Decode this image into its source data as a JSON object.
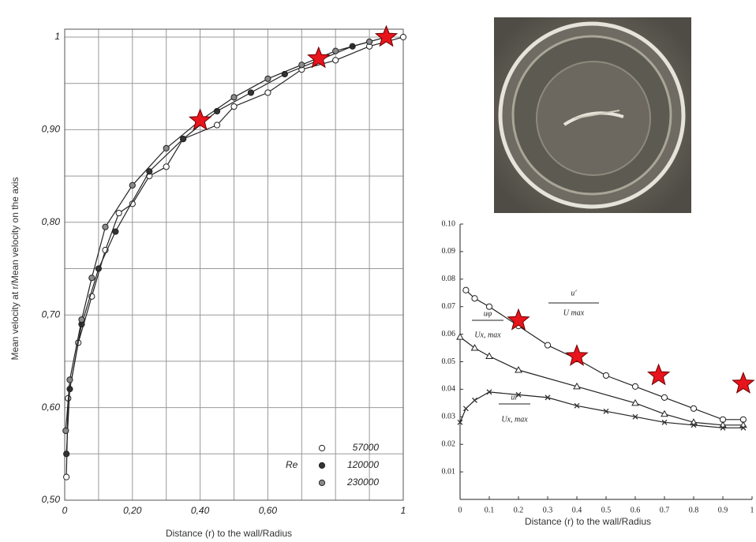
{
  "chart_data": [
    {
      "type": "scatter",
      "x_label": "Distance (r) to the wall/Radius",
      "y_label": "Mean velocity at r/Mean velocity on the axis",
      "legend_title": "Re",
      "legend": "lower right",
      "grid": true,
      "xlim": [
        0,
        1
      ],
      "ylim": [
        0.5,
        1
      ],
      "xticks": [
        0,
        {
          "value": 0.2,
          "label": "0,20"
        },
        {
          "value": 0.4,
          "label": "0,40"
        },
        {
          "value": 0.6,
          "label": "0,60"
        },
        1
      ],
      "yticks": [
        {
          "value": 0.5,
          "label": "0,50"
        },
        {
          "value": 0.6,
          "label": "0,60"
        },
        {
          "value": 0.7,
          "label": "0,70"
        },
        {
          "value": 0.8,
          "label": "0,80"
        },
        {
          "value": 0.9,
          "label": "0,90"
        },
        1
      ],
      "xminor": [
        0.1,
        0.3,
        0.5,
        0.7,
        0.8,
        0.9
      ],
      "yminor": [
        0.55,
        0.65,
        0.75,
        0.85,
        0.95
      ],
      "series": [
        {
          "name": "57000",
          "marker": "circle",
          "color": "#ffffff",
          "x": [
            0.005,
            0.01,
            0.04,
            0.08,
            0.12,
            0.16,
            0.2,
            0.25,
            0.3,
            0.35,
            0.45,
            0.5,
            0.6,
            0.7,
            0.8,
            0.9,
            1.0
          ],
          "values": [
            0.525,
            0.61,
            0.67,
            0.72,
            0.77,
            0.81,
            0.82,
            0.85,
            0.86,
            0.89,
            0.905,
            0.925,
            0.94,
            0.965,
            0.975,
            0.99,
            1.0
          ]
        },
        {
          "name": "120000",
          "marker": "circle",
          "color": "#333333",
          "x": [
            0.005,
            0.015,
            0.05,
            0.1,
            0.15,
            0.25,
            0.35,
            0.45,
            0.55,
            0.65,
            0.75,
            0.85,
            0.95
          ],
          "values": [
            0.55,
            0.62,
            0.69,
            0.75,
            0.79,
            0.855,
            0.89,
            0.92,
            0.94,
            0.96,
            0.975,
            0.99,
            1.0
          ]
        },
        {
          "name": "230000",
          "marker": "circle",
          "color": "#8a8a8a",
          "x": [
            0.003,
            0.015,
            0.05,
            0.08,
            0.12,
            0.2,
            0.3,
            0.4,
            0.5,
            0.6,
            0.7,
            0.8,
            0.9
          ],
          "values": [
            0.575,
            0.63,
            0.695,
            0.74,
            0.795,
            0.84,
            0.88,
            0.91,
            0.935,
            0.955,
            0.97,
            0.985,
            0.995
          ]
        }
      ],
      "highlights": {
        "color": "#e8141c",
        "x": [
          0.4,
          0.75,
          0.95
        ],
        "values": [
          0.91,
          0.977,
          1.0
        ]
      }
    },
    {
      "type": "scatter",
      "x_label": "Distance (r) to the wall/Radius",
      "grid": false,
      "xlim": [
        0,
        1
      ],
      "ylim": [
        0,
        0.1
      ],
      "xticks": [
        0,
        0.1,
        0.2,
        0.3,
        0.4,
        0.5,
        0.6,
        0.7,
        0.8,
        0.9,
        1
      ],
      "yticks": [
        0.01,
        0.02,
        0.03,
        0.04,
        0.05,
        0.06,
        0.07,
        0.08,
        0.09,
        {
          "value": 0.1,
          "label": "0.10"
        }
      ],
      "series": [
        {
          "numerator": "u'",
          "denominator": "U max",
          "marker": "circle",
          "color": "#ffffff",
          "x": [
            0.02,
            0.05,
            0.1,
            0.2,
            0.3,
            0.4,
            0.5,
            0.6,
            0.7,
            0.8,
            0.9,
            0.97
          ],
          "values": [
            0.076,
            0.073,
            0.07,
            0.063,
            0.056,
            0.051,
            0.045,
            0.041,
            0.037,
            0.033,
            0.029,
            0.029
          ]
        },
        {
          "numerator": "uφ",
          "denominator": "Ux, max",
          "marker": "triangle",
          "color": "#ffffff",
          "x": [
            0.0,
            0.05,
            0.1,
            0.2,
            0.4,
            0.6,
            0.7,
            0.8,
            0.9,
            0.97
          ],
          "values": [
            0.059,
            0.055,
            0.052,
            0.047,
            0.041,
            0.035,
            0.031,
            0.028,
            0.027,
            0.027
          ]
        },
        {
          "numerator": "ur",
          "denominator": "Ux, max",
          "marker": "cross",
          "color": "#333333",
          "x": [
            0.0,
            0.02,
            0.05,
            0.1,
            0.2,
            0.3,
            0.4,
            0.5,
            0.6,
            0.7,
            0.8,
            0.9,
            0.97
          ],
          "values": [
            0.028,
            0.033,
            0.036,
            0.039,
            0.038,
            0.037,
            0.034,
            0.032,
            0.03,
            0.028,
            0.027,
            0.026,
            0.026
          ]
        }
      ],
      "highlights": {
        "color": "#e8141c",
        "x": [
          0.2,
          0.4,
          0.68,
          0.97
        ],
        "values": [
          0.065,
          0.052,
          0.045,
          0.042
        ]
      }
    }
  ]
}
